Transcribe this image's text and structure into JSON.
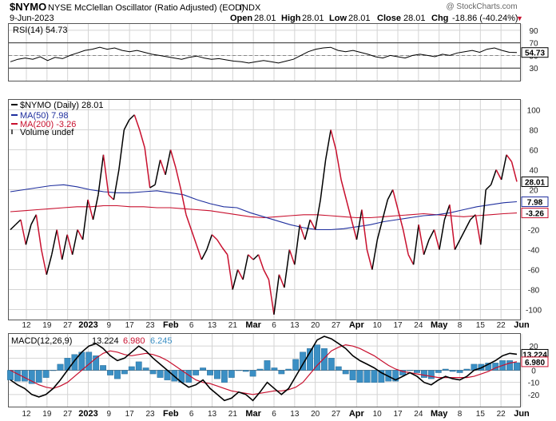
{
  "header": {
    "symbol": "$NYMO",
    "name": "NYSE McClellan Oscillator (Ratio Adjusted) (EOD)",
    "exchange": "INDX",
    "date": "9-Jun-2023",
    "watermark": "@ StockCharts.com",
    "open_label": "Open",
    "open": "28.01",
    "high_label": "High",
    "high": "28.01",
    "low_label": "Low",
    "low": "28.01",
    "close_label": "Close",
    "close": "28.01",
    "chg_label": "Chg",
    "chg": "-18.86 (-40.24%)",
    "chg_arrow": "▼"
  },
  "colors": {
    "price": "#000000",
    "price_down": "#c8102e",
    "ma50": "#1f2f9e",
    "ma200": "#c8102e",
    "histogram": "#3b8fc4",
    "grid": "#d4d4d4"
  },
  "x_axis": {
    "labels": [
      "12",
      "19",
      "27",
      "2023",
      "9",
      "17",
      "23",
      "Feb",
      "6",
      "13",
      "21",
      "Mar",
      "6",
      "13",
      "20",
      "27",
      "Apr",
      "10",
      "17",
      "24",
      "May",
      "8",
      "15",
      "22",
      "Jun"
    ],
    "bold": [
      "2023",
      "Feb",
      "Mar",
      "Apr",
      "May",
      "Jun"
    ]
  },
  "chart_data": [
    {
      "type": "line",
      "panel": "rsi",
      "legend": "RSI(14) 54.73",
      "ylim": [
        10,
        100
      ],
      "yticks": [
        "90",
        "70",
        "50",
        "30"
      ],
      "ref_lines": [
        70,
        30
      ],
      "mid_line": 50,
      "last_value_label": "54.73",
      "series": [
        {
          "name": "RSI(14)",
          "values": [
            40,
            44,
            46,
            44,
            48,
            42,
            47,
            45,
            50,
            54,
            58,
            60,
            63,
            60,
            62,
            58,
            56,
            58,
            55,
            52,
            50,
            48,
            46,
            44,
            47,
            49,
            46,
            44,
            45,
            43,
            41,
            40,
            38,
            40,
            42,
            40,
            38,
            41,
            44,
            50,
            56,
            60,
            62,
            63,
            58,
            56,
            58,
            55,
            52,
            48,
            46,
            50,
            48,
            46,
            50,
            52,
            50,
            48,
            52,
            50,
            54,
            56,
            58,
            55,
            60,
            62,
            58,
            55,
            54.73
          ]
        }
      ]
    },
    {
      "type": "line",
      "panel": "main",
      "ylim": [
        -110,
        110
      ],
      "yticks": [
        "100",
        "80",
        "60",
        "40",
        "20",
        "-20",
        "-40",
        "-60",
        "-80",
        "-100"
      ],
      "legend": [
        {
          "label": "$NYMO (Daily) 28.01"
        },
        {
          "label": "MA(50) 7.98"
        },
        {
          "label": "MA(200) -3.26"
        },
        {
          "label": "Volume undef"
        }
      ],
      "last_labels": [
        "28.01",
        "7.98",
        "-3.26"
      ],
      "series": [
        {
          "name": "$NYMO (Daily)",
          "values": [
            -20,
            -15,
            -10,
            -35,
            -15,
            -5,
            -40,
            -65,
            -45,
            -20,
            -50,
            -25,
            -45,
            -20,
            -30,
            10,
            -10,
            15,
            55,
            15,
            10,
            40,
            80,
            90,
            95,
            80,
            62,
            22,
            25,
            50,
            35,
            60,
            42,
            20,
            -5,
            -20,
            -35,
            -50,
            -40,
            -25,
            -30,
            -38,
            -45,
            -80,
            -60,
            -70,
            -45,
            -50,
            -45,
            -60,
            -70,
            -105,
            -65,
            -78,
            -40,
            -55,
            -15,
            -30,
            -10,
            -20,
            10,
            50,
            80,
            60,
            30,
            10,
            -10,
            -30,
            0,
            -40,
            -60,
            -30,
            -10,
            10,
            20,
            0,
            -20,
            -45,
            -55,
            -15,
            -45,
            -30,
            -20,
            -40,
            -10,
            5,
            -40,
            -30,
            -20,
            -10,
            -5,
            -35,
            20,
            25,
            40,
            30,
            55,
            48,
            28.01
          ]
        },
        {
          "name": "MA(50)",
          "values": [
            18,
            20,
            22,
            24,
            25,
            23,
            20,
            18,
            17,
            17,
            18,
            19,
            17,
            15,
            10,
            6,
            3,
            2,
            -3,
            -7,
            -11,
            -15,
            -18,
            -20,
            -20,
            -19,
            -17,
            -15,
            -12,
            -10,
            -8,
            -6,
            -5,
            -3,
            0,
            3,
            5,
            7,
            7.98
          ]
        },
        {
          "name": "MA(200)",
          "values": [
            -2,
            -1,
            0,
            1,
            2,
            3,
            3,
            4,
            4,
            3,
            3,
            2,
            2,
            1,
            0,
            -1,
            -3,
            -5,
            -7,
            -8,
            -7,
            -6,
            -5,
            -5,
            -6,
            -7,
            -8,
            -8,
            -7,
            -6,
            -5,
            -4,
            -5,
            -6,
            -7,
            -6,
            -5,
            -4,
            -3.26
          ]
        }
      ]
    },
    {
      "type": "line",
      "panel": "macd",
      "legend": {
        "label": "MACD(12,26,9)",
        "macd": "13.224",
        "signal": "6.980",
        "hist": "6.245"
      },
      "ylim": [
        -30,
        30
      ],
      "yticks": [
        "20",
        "10",
        "0",
        "-10",
        "-20"
      ],
      "last_labels": [
        "13.224",
        "6.980"
      ],
      "series": [
        {
          "name": "MACD",
          "values": [
            -8,
            -12,
            -15,
            -20,
            -22,
            -20,
            -15,
            -8,
            0,
            8,
            15,
            20,
            22,
            18,
            12,
            8,
            10,
            15,
            20,
            16,
            10,
            5,
            0,
            -5,
            -10,
            -14,
            -12,
            -8,
            -15,
            -20,
            -25,
            -23,
            -18,
            -20,
            -25,
            -18,
            -10,
            -15,
            -20,
            -15,
            -5,
            5,
            15,
            25,
            28,
            26,
            22,
            18,
            12,
            8,
            5,
            2,
            -2,
            -5,
            -8,
            -5,
            -2,
            -5,
            -10,
            -12,
            -8,
            -5,
            -7,
            -8,
            -5,
            0,
            2,
            5,
            8,
            12,
            14,
            13.224
          ]
        },
        {
          "name": "Signal",
          "values": [
            0,
            -3,
            -6,
            -9,
            -12,
            -14,
            -15,
            -13,
            -10,
            -5,
            0,
            5,
            10,
            14,
            16,
            15,
            13,
            12,
            13,
            14,
            13,
            11,
            8,
            4,
            0,
            -4,
            -8,
            -10,
            -11,
            -13,
            -15,
            -17,
            -18,
            -19,
            -20,
            -19,
            -18,
            -17,
            -17,
            -16,
            -14,
            -10,
            -3,
            4,
            10,
            16,
            19,
            21,
            20,
            18,
            15,
            12,
            8,
            4,
            1,
            -1,
            -2,
            -3,
            -4,
            -5,
            -6,
            -6,
            -6,
            -6,
            -6,
            -5,
            -3,
            -1,
            2,
            4,
            6,
            6.98
          ]
        }
      ]
    }
  ]
}
